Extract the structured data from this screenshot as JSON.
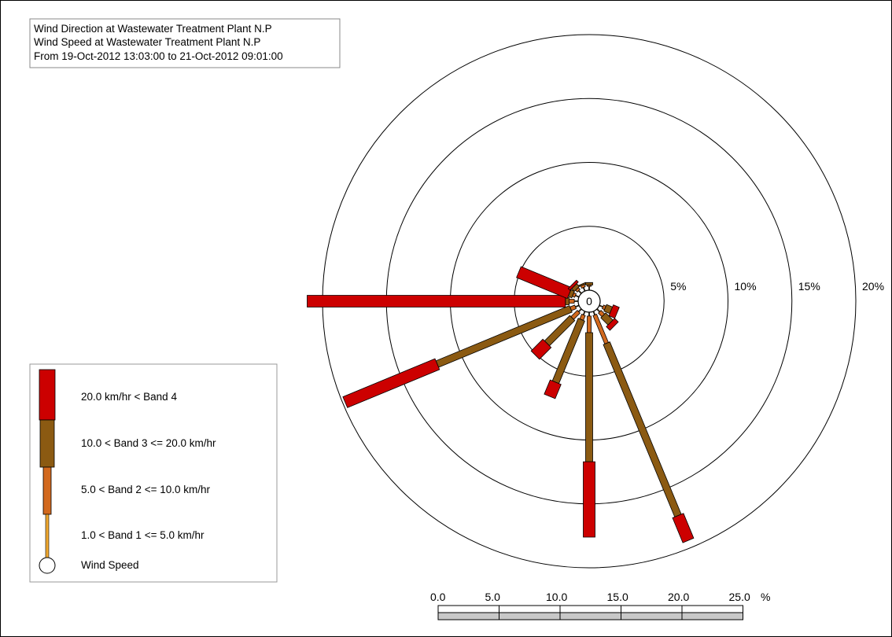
{
  "header": {
    "line1": "Wind Direction at Wastewater Treatment Plant N.P",
    "line2": "Wind Speed at Wastewater Treatment Plant N.P",
    "line3": "From 19-Oct-2012 13:03:00 to 21-Oct-2012 09:01:00"
  },
  "chart_data": {
    "type": "wind-rose",
    "title": "Wind Direction at Wastewater Treatment Plant N.P",
    "subtitle": "Wind Speed at Wastewater Treatment Plant N.P",
    "period": "From 19-Oct-2012 13:03:00 to 21-Oct-2012 09:01:00",
    "calm_label": "0",
    "radial_unit": "%",
    "radial_max": 20,
    "rings": [
      {
        "value": 5,
        "label": "5%"
      },
      {
        "value": 10,
        "label": "10%"
      },
      {
        "value": 15,
        "label": "15%"
      },
      {
        "value": 20,
        "label": "20%"
      }
    ],
    "bands": [
      {
        "name": "20.0 km/hr < Band 4",
        "color": "#cc0000"
      },
      {
        "name": "10.0 < Band 3 <= 20.0 km/hr",
        "color": "#8b5a12"
      },
      {
        "name": "5.0 < Band 2 <= 10.0 km/hr",
        "color": "#d2691e"
      },
      {
        "name": "1.0 < Band 1 <= 5.0 km/hr",
        "color": "#f0a830"
      }
    ],
    "calm_legend_label": "Wind Speed",
    "directions": [
      {
        "direction_deg": 0,
        "bands_cumulative": [
          0.3,
          0.4,
          0.6,
          0.6
        ]
      },
      {
        "direction_deg": 22.5,
        "bands_cumulative": [
          0,
          0,
          0,
          0
        ]
      },
      {
        "direction_deg": 45,
        "bands_cumulative": [
          0,
          0,
          0,
          0
        ]
      },
      {
        "direction_deg": 67.5,
        "bands_cumulative": [
          0,
          0,
          0,
          0
        ]
      },
      {
        "direction_deg": 90,
        "bands_cumulative": [
          0,
          0,
          0,
          0
        ]
      },
      {
        "direction_deg": 112.5,
        "bands_cumulative": [
          0.3,
          0.5,
          1.0,
          1.5
        ]
      },
      {
        "direction_deg": 135,
        "bands_cumulative": [
          0.3,
          0.7,
          1.5,
          1.9
        ]
      },
      {
        "direction_deg": 157.5,
        "bands_cumulative": [
          0.3,
          2.7,
          17.3,
          19.4
        ]
      },
      {
        "direction_deg": 180,
        "bands_cumulative": [
          0.3,
          1.6,
          11.7,
          17.6
        ]
      },
      {
        "direction_deg": 202.5,
        "bands_cumulative": [
          0.3,
          0.7,
          6.0,
          7.2
        ]
      },
      {
        "direction_deg": 225,
        "bands_cumulative": [
          0.3,
          1.0,
          3.8,
          5.1
        ]
      },
      {
        "direction_deg": 247.5,
        "bands_cumulative": [
          0.3,
          0.7,
          12.0,
          19.8
        ]
      },
      {
        "direction_deg": 270,
        "bands_cumulative": [
          0.3,
          0.7,
          1.0,
          21.2
        ]
      },
      {
        "direction_deg": 292.5,
        "bands_cumulative": [
          0.3,
          0.5,
          0.8,
          5.1
        ]
      },
      {
        "direction_deg": 315,
        "bands_cumulative": [
          0.3,
          0.5,
          0.8,
          1.0
        ]
      },
      {
        "direction_deg": 337.5,
        "bands_cumulative": [
          0.3,
          0.5,
          0.6,
          0.6
        ]
      }
    ],
    "scale_bar": {
      "ticks": [
        "0.0",
        "5.0",
        "10.0",
        "15.0",
        "20.0",
        "25.0"
      ],
      "unit": "%"
    }
  }
}
